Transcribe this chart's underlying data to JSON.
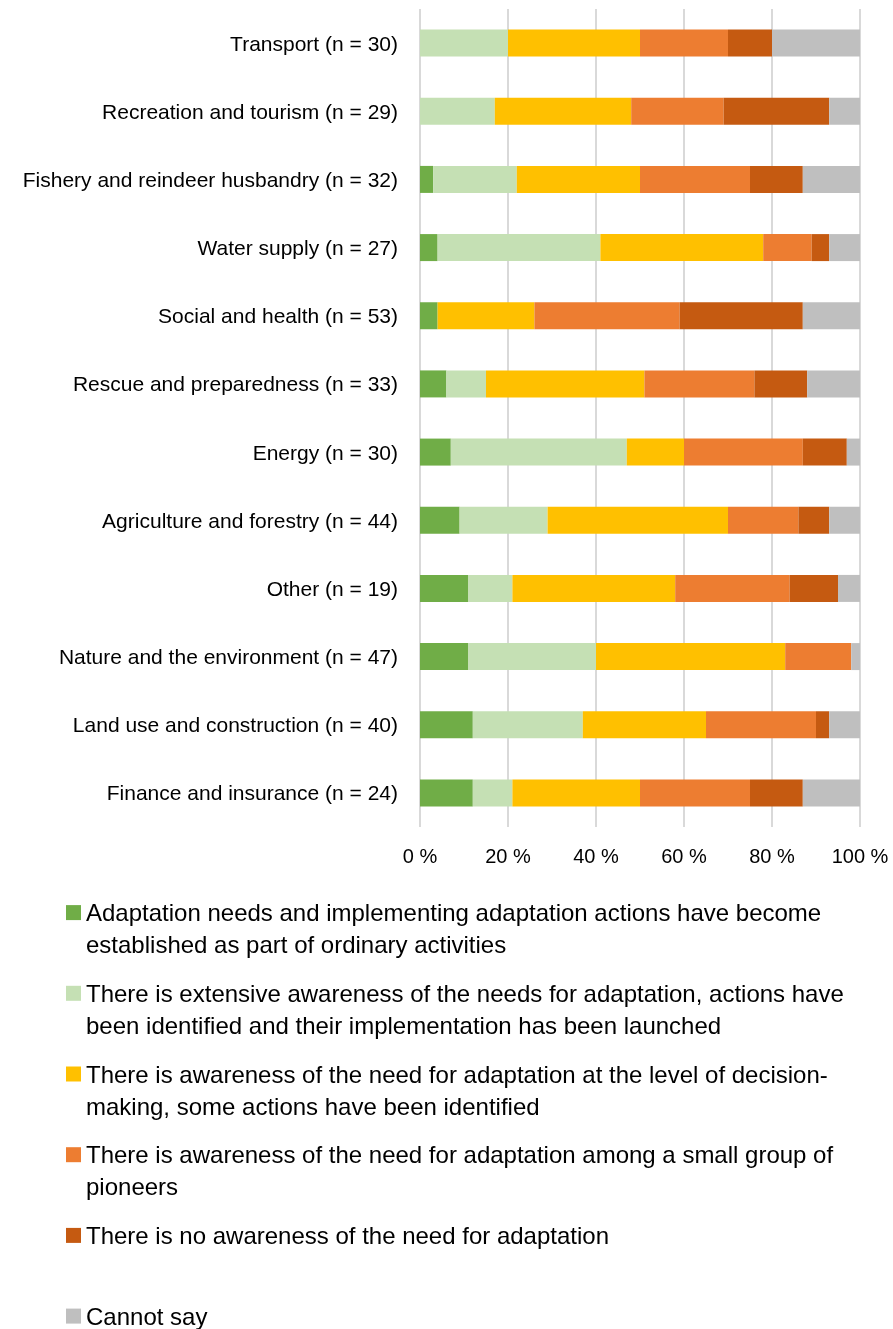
{
  "chart_data": {
    "type": "bar",
    "orientation": "horizontal",
    "stacked": true,
    "categories": [
      "Transport (n = 30)",
      "Recreation and tourism (n = 29)",
      "Fishery and reindeer husbandry (n = 32)",
      "Water supply (n = 27)",
      "Social and health (n = 53)",
      "Rescue and preparedness (n = 33)",
      "Energy (n = 30)",
      "Agriculture and forestry (n = 44)",
      "Other (n = 19)",
      "Nature and the environment (n = 47)",
      "Land use and construction (n = 40)",
      "Finance and insurance (n = 24)"
    ],
    "series": [
      {
        "name": "Adaptation needs and implementing adaptation actions have become established as part of ordinary activities",
        "color": "#70ad47",
        "values": [
          0,
          0,
          3,
          4,
          4,
          6,
          7,
          9,
          11,
          11,
          12,
          12
        ]
      },
      {
        "name": "There is extensive awareness of the needs for adaptation, actions have been identified and their implementation has been launched",
        "color": "#c5e0b4",
        "values": [
          20,
          17,
          19,
          37,
          0,
          9,
          40,
          20,
          10,
          29,
          25,
          9
        ]
      },
      {
        "name": "There is awareness of the need for adaptation at the level of decision-making, some actions have been identified",
        "color": "#ffc000",
        "values": [
          30,
          31,
          28,
          37,
          22,
          36,
          13,
          41,
          37,
          43,
          28,
          29
        ]
      },
      {
        "name": "There is awareness of the need for adaptation among a small group of pioneers",
        "color": "#ed7d31",
        "values": [
          20,
          21,
          25,
          11,
          33,
          25,
          27,
          16,
          26,
          15,
          25,
          25
        ]
      },
      {
        "name": "There is no awareness of the need for adaptation",
        "color": "#c55a11",
        "values": [
          10,
          24,
          12,
          4,
          28,
          12,
          10,
          7,
          11,
          0,
          3,
          12
        ]
      },
      {
        "name": "Cannot say",
        "color": "#bfbfbf",
        "values": [
          20,
          7,
          13,
          7,
          13,
          12,
          3,
          7,
          5,
          2,
          7,
          13
        ]
      }
    ],
    "xlim": [
      0,
      100
    ],
    "xticks": [
      {
        "value": 0,
        "label": "0 %"
      },
      {
        "value": 20,
        "label": "20 %"
      },
      {
        "value": 40,
        "label": "40 %"
      },
      {
        "value": 60,
        "label": "60 %"
      },
      {
        "value": 80,
        "label": "80 %"
      },
      {
        "value": 100,
        "label": "100 %"
      }
    ],
    "grid": "x",
    "legend": "bottom"
  }
}
